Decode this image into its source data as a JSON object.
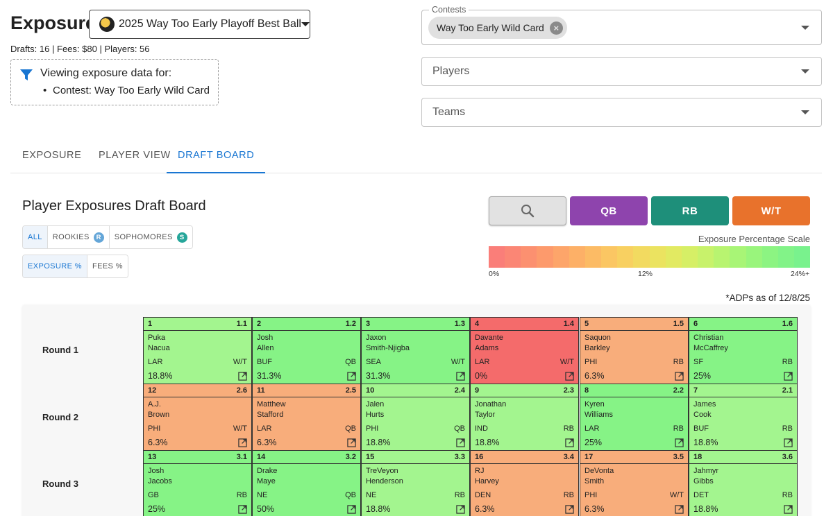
{
  "header": {
    "title": "Exposure",
    "draft_select": "2025 Way Too Early Playoff Best Ball",
    "stats": {
      "drafts": "Drafts: 16",
      "fees": "Fees: $80",
      "players": "Players: 56",
      "sep": "|"
    }
  },
  "filter_summary": {
    "title": "Viewing exposure data for:",
    "item": "Contest: Way Too Early Wild Card"
  },
  "selects": {
    "contests_label": "Contests",
    "contest_chip": "Way Too Early Wild Card",
    "players_placeholder": "Players",
    "teams_placeholder": "Teams"
  },
  "tabs": [
    {
      "label": "EXPOSURE"
    },
    {
      "label": "PLAYER VIEW"
    },
    {
      "label": "DRAFT BOARD",
      "active": true
    }
  ],
  "board": {
    "title": "Player Exposures Draft Board",
    "filters": {
      "all": "ALL",
      "rookies": "ROOKIES",
      "rookies_badge": "R",
      "sophomores": "SOPHOMORES",
      "sophomores_badge": "S"
    },
    "metric": {
      "exposure": "EXPOSURE %",
      "fees": "FEES %"
    },
    "position_buttons": {
      "qb": "QB",
      "rb": "RB",
      "wt": "W/T"
    },
    "scale": {
      "label": "Exposure Percentage Scale",
      "min": "0%",
      "mid": "12%",
      "max": "24%+"
    },
    "adp_note": "*ADPs as of 12/8/25",
    "rounds": [
      {
        "label": "Round 1"
      },
      {
        "label": "Round 2"
      },
      {
        "label": "Round 3"
      }
    ]
  },
  "colors": {
    "accent": "#1976d2",
    "qb": "#8e44ad",
    "rb": "#1e8f7a",
    "wt": "#e8722c",
    "rookie_badge": "#64a6d8",
    "sophomore_badge": "#26a69a",
    "high": "#86f386",
    "mid": "#a3f58f",
    "low": "#f8ad7b",
    "zero": "#f46b6b",
    "scale": [
      "#fa7e79",
      "#fb8675",
      "#fc9070",
      "#fd9a6c",
      "#fda56a",
      "#fdb067",
      "#fcbb65",
      "#fbc663",
      "#f8d061",
      "#f2da60",
      "#ebe360",
      "#e2ea62",
      "#d6ef66",
      "#c8f26b",
      "#b8f470",
      "#a8f576",
      "#99f57c",
      "#8cf482",
      "#82f388",
      "#79f28d"
    ]
  },
  "picks": [
    {
      "pick": "1",
      "adp": "1.1",
      "first": "Puka",
      "last": "Nacua",
      "team": "LAR",
      "pos": "W/T",
      "exp": "18.8%",
      "tier": "mid"
    },
    {
      "pick": "2",
      "adp": "1.2",
      "first": "Josh",
      "last": "Allen",
      "team": "BUF",
      "pos": "QB",
      "exp": "31.3%",
      "tier": "high"
    },
    {
      "pick": "3",
      "adp": "1.3",
      "first": "Jaxon",
      "last": "Smith-Njigba",
      "team": "SEA",
      "pos": "W/T",
      "exp": "31.3%",
      "tier": "high"
    },
    {
      "pick": "4",
      "adp": "1.4",
      "first": "Davante",
      "last": "Adams",
      "team": "LAR",
      "pos": "W/T",
      "exp": "0%",
      "tier": "zero"
    },
    {
      "pick": "5",
      "adp": "1.5",
      "first": "Saquon",
      "last": "Barkley",
      "team": "PHI",
      "pos": "RB",
      "exp": "6.3%",
      "tier": "low"
    },
    {
      "pick": "6",
      "adp": "1.6",
      "first": "Christian",
      "last": "McCaffrey",
      "team": "SF",
      "pos": "RB",
      "exp": "25%",
      "tier": "high"
    },
    {
      "pick": "12",
      "adp": "2.6",
      "first": "A.J.",
      "last": "Brown",
      "team": "PHI",
      "pos": "W/T",
      "exp": "6.3%",
      "tier": "low"
    },
    {
      "pick": "11",
      "adp": "2.5",
      "first": "Matthew",
      "last": "Stafford",
      "team": "LAR",
      "pos": "QB",
      "exp": "6.3%",
      "tier": "low"
    },
    {
      "pick": "10",
      "adp": "2.4",
      "first": "Jalen",
      "last": "Hurts",
      "team": "PHI",
      "pos": "QB",
      "exp": "18.8%",
      "tier": "mid"
    },
    {
      "pick": "9",
      "adp": "2.3",
      "first": "Jonathan",
      "last": "Taylor",
      "team": "IND",
      "pos": "RB",
      "exp": "18.8%",
      "tier": "mid"
    },
    {
      "pick": "8",
      "adp": "2.2",
      "first": "Kyren",
      "last": "Williams",
      "team": "LAR",
      "pos": "RB",
      "exp": "25%",
      "tier": "high"
    },
    {
      "pick": "7",
      "adp": "2.1",
      "first": "James",
      "last": "Cook",
      "team": "BUF",
      "pos": "RB",
      "exp": "18.8%",
      "tier": "mid"
    },
    {
      "pick": "13",
      "adp": "3.1",
      "first": "Josh",
      "last": "Jacobs",
      "team": "GB",
      "pos": "RB",
      "exp": "25%",
      "tier": "high"
    },
    {
      "pick": "14",
      "adp": "3.2",
      "first": "Drake",
      "last": "Maye",
      "team": "NE",
      "pos": "QB",
      "exp": "50%",
      "tier": "high"
    },
    {
      "pick": "15",
      "adp": "3.3",
      "first": "TreVeyon",
      "last": "Henderson",
      "team": "NE",
      "pos": "RB",
      "exp": "18.8%",
      "tier": "mid"
    },
    {
      "pick": "16",
      "adp": "3.4",
      "first": "RJ",
      "last": "Harvey",
      "team": "DEN",
      "pos": "RB",
      "exp": "6.3%",
      "tier": "low"
    },
    {
      "pick": "17",
      "adp": "3.5",
      "first": "DeVonta",
      "last": "Smith",
      "team": "PHI",
      "pos": "W/T",
      "exp": "6.3%",
      "tier": "low"
    },
    {
      "pick": "18",
      "adp": "3.6",
      "first": "Jahmyr",
      "last": "Gibbs",
      "team": "DET",
      "pos": "RB",
      "exp": "18.8%",
      "tier": "mid"
    }
  ]
}
